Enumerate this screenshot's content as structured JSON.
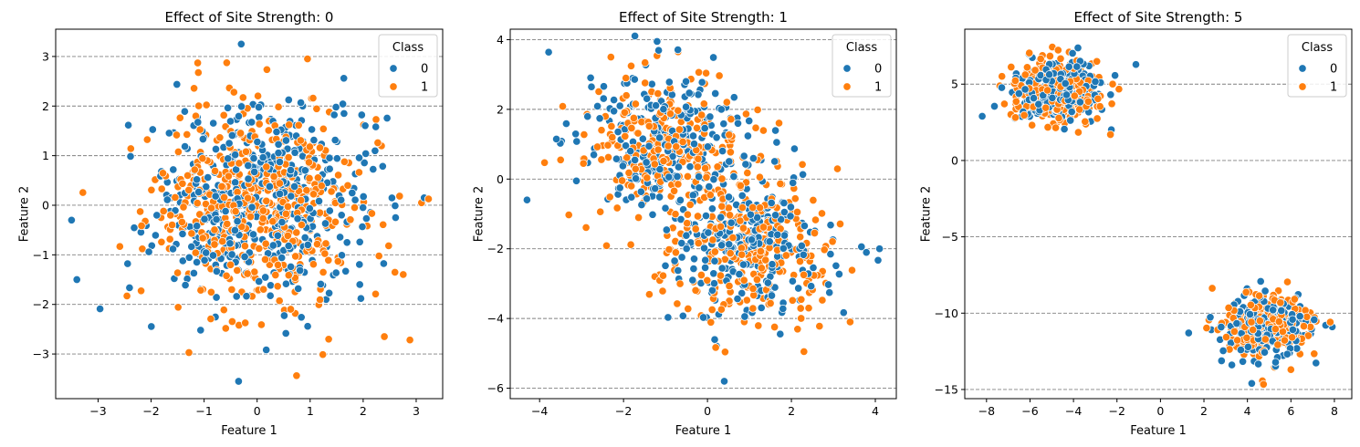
{
  "colors": {
    "class0": "#1f77b4",
    "class1": "#ff7f0e",
    "grid": "#808080"
  },
  "chart_data": [
    {
      "type": "scatter",
      "title": "Effect of Site Strength: 0",
      "xlabel": "Feature 1",
      "ylabel": "Feature 2",
      "xlim": [
        -3.8,
        3.5
      ],
      "ylim": [
        -3.9,
        3.55
      ],
      "xticks": [
        -3,
        -2,
        -1,
        0,
        1,
        2,
        3
      ],
      "yticks": [
        -3,
        -2,
        -1,
        0,
        1,
        2,
        3
      ],
      "xtick_labels": [
        "−3",
        "−2",
        "−1",
        "0",
        "1",
        "2",
        "3"
      ],
      "ytick_labels": [
        "−3",
        "−2",
        "−1",
        "0",
        "1",
        "2",
        "3"
      ],
      "grid": "horizontal-dashed",
      "legend": {
        "title": "Class",
        "labels": [
          "0",
          "1"
        ],
        "position": "top-right"
      },
      "series": [
        {
          "name": "0",
          "clusters": [
            {
              "n": 500,
              "mean": [
                0,
                0
              ],
              "sd": [
                1.0,
                1.0
              ],
              "rho": 0
            }
          ],
          "extreme_points": [
            [
              -3.5,
              -0.3
            ],
            [
              -3.4,
              -1.5
            ],
            [
              -0.35,
              -3.55
            ],
            [
              -0.3,
              3.25
            ],
            [
              3.15,
              0.15
            ]
          ]
        },
        {
          "name": "1",
          "clusters": [
            {
              "n": 500,
              "mean": [
                0,
                0
              ],
              "sd": [
                1.0,
                1.0
              ],
              "rho": 0
            }
          ],
          "extreme_points": [
            [
              2.4,
              -2.65
            ],
            [
              1.35,
              -2.7
            ],
            [
              3.1,
              0.05
            ],
            [
              0.95,
              2.95
            ],
            [
              2.6,
              -1.35
            ]
          ]
        }
      ]
    },
    {
      "type": "scatter",
      "title": "Effect of Site Strength: 1",
      "xlabel": "Feature 1",
      "ylabel": "Feature 2",
      "xlim": [
        -4.7,
        4.5
      ],
      "ylim": [
        -6.3,
        4.3
      ],
      "xticks": [
        -4,
        -2,
        0,
        2,
        4
      ],
      "yticks": [
        -6,
        -4,
        -2,
        0,
        2,
        4
      ],
      "xtick_labels": [
        "−4",
        "−2",
        "0",
        "2",
        "4"
      ],
      "ytick_labels": [
        "−6",
        "−4",
        "−2",
        "0",
        "2",
        "4"
      ],
      "grid": "horizontal-dashed",
      "legend": {
        "title": "Class",
        "labels": [
          "0",
          "1"
        ],
        "position": "top-right"
      },
      "series": [
        {
          "name": "0",
          "clusters": [
            {
              "n": 250,
              "mean": [
                -1,
                1
              ],
              "sd": [
                1.0,
                1.0
              ],
              "rho": 0
            },
            {
              "n": 250,
              "mean": [
                1,
                -2
              ],
              "sd": [
                1.0,
                1.0
              ],
              "rho": 0
            }
          ],
          "extreme_points": [
            [
              -4.3,
              -0.6
            ],
            [
              -1.2,
              3.95
            ],
            [
              0.4,
              -5.8
            ],
            [
              4.1,
              -2.0
            ],
            [
              -3.6,
              1.15
            ]
          ]
        },
        {
          "name": "1",
          "clusters": [
            {
              "n": 250,
              "mean": [
                -1,
                1
              ],
              "sd": [
                1.0,
                1.0
              ],
              "rho": 0
            },
            {
              "n": 250,
              "mean": [
                1,
                -2
              ],
              "sd": [
                1.0,
                1.0
              ],
              "rho": 0
            }
          ],
          "extreme_points": [
            [
              -2.3,
              3.5
            ],
            [
              -0.7,
              3.65
            ],
            [
              2.3,
              -4.95
            ],
            [
              3.4,
              -4.1
            ],
            [
              -3.5,
              0.55
            ]
          ]
        }
      ]
    },
    {
      "type": "scatter",
      "title": "Effect of Site Strength: 5",
      "xlabel": "Feature 1",
      "ylabel": "Feature 2",
      "xlim": [
        -9.0,
        8.8
      ],
      "ylim": [
        -15.6,
        8.6
      ],
      "xticks": [
        -8,
        -6,
        -4,
        -2,
        0,
        2,
        4,
        6,
        8
      ],
      "yticks": [
        -15,
        -10,
        -5,
        0,
        5
      ],
      "xtick_labels": [
        "−8",
        "−6",
        "−4",
        "−2",
        "0",
        "2",
        "4",
        "6",
        "8"
      ],
      "ytick_labels": [
        "−15",
        "−10",
        "−5",
        "0",
        "5"
      ],
      "grid": "horizontal-dashed",
      "legend": {
        "title": "Class",
        "labels": [
          "0",
          "1"
        ],
        "position": "top-right"
      },
      "series": [
        {
          "name": "0",
          "clusters": [
            {
              "n": 250,
              "mean": [
                -4.8,
                4.5
              ],
              "sd": [
                1.0,
                1.0
              ],
              "rho": 0
            },
            {
              "n": 250,
              "mean": [
                4.8,
                -10.9
              ],
              "sd": [
                1.0,
                1.0
              ],
              "rho": 0
            }
          ],
          "extreme_points": [
            [
              -8.2,
              2.9
            ],
            [
              1.3,
              -11.3
            ],
            [
              4.2,
              -14.6
            ],
            [
              7.9,
              -10.9
            ]
          ]
        },
        {
          "name": "1",
          "clusters": [
            {
              "n": 250,
              "mean": [
                -4.8,
                4.5
              ],
              "sd": [
                1.0,
                1.0
              ],
              "rho": 0
            },
            {
              "n": 250,
              "mean": [
                4.8,
                -10.9
              ],
              "sd": [
                1.0,
                1.0
              ],
              "rho": 0
            }
          ],
          "extreme_points": [
            [
              -2.3,
              1.7
            ],
            [
              -2.2,
              5.0
            ],
            [
              6.0,
              -13.7
            ],
            [
              -4.2,
              7.1
            ]
          ]
        }
      ]
    }
  ]
}
